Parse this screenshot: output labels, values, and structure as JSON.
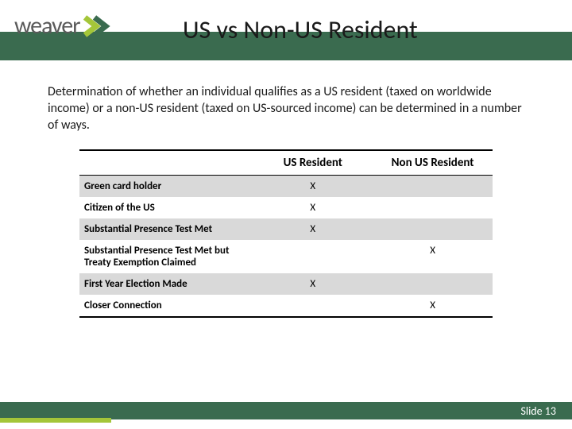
{
  "header": {
    "logo_text": "weaver",
    "title": "US vs Non-US Resident"
  },
  "intro": "Determination of whether an individual qualifies as a US resident (taxed on worldwide income) or a non-US resident (taxed on US-sourced income) can be determined in a number of ways.",
  "table": {
    "columns": [
      "",
      "US Resident",
      "Non US Resident"
    ],
    "rows": [
      {
        "label": "Green card holder",
        "us": "X",
        "non": "",
        "shaded": true
      },
      {
        "label": "Citizen of the US",
        "us": "X",
        "non": "",
        "shaded": false
      },
      {
        "label": "Substantial Presence Test Met",
        "us": "X",
        "non": "",
        "shaded": true
      },
      {
        "label": "Substantial Presence Test Met but Treaty Exemption Claimed",
        "us": "",
        "non": "X",
        "shaded": false
      },
      {
        "label": "First Year Election Made",
        "us": "X",
        "non": "",
        "shaded": true
      },
      {
        "label": "Closer Connection",
        "us": "",
        "non": "X",
        "shaded": false
      }
    ]
  },
  "footer": {
    "slide_label": "Slide 13"
  },
  "colors": {
    "brand_green": "#3a6b4f",
    "accent_lime": "#a4c639",
    "shaded_row": "#d9d9d9",
    "text": "#1a1a1a",
    "logo_gray": "#5a5a5a"
  }
}
